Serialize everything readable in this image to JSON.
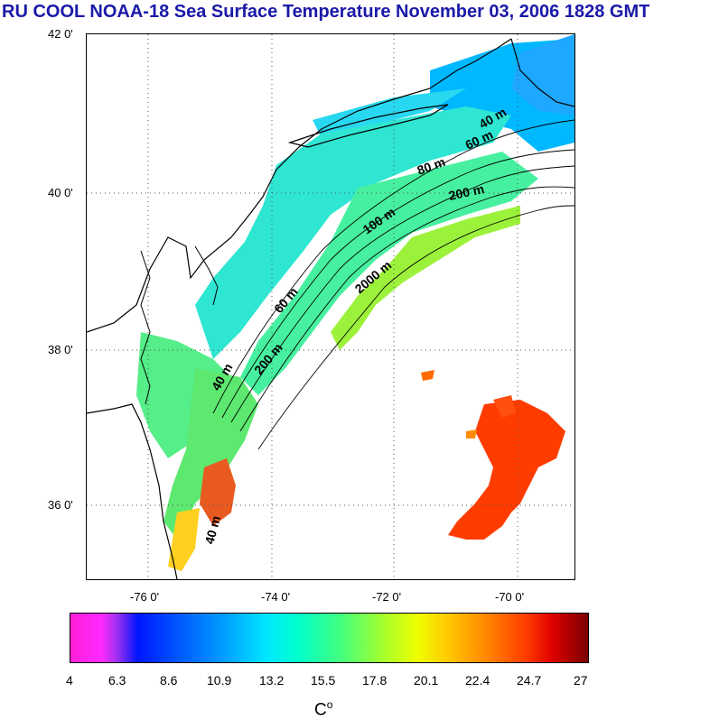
{
  "title": "RU COOL  NOAA-18 Sea Surface Temperature November 03, 2006 1828 GMT",
  "map": {
    "lat_labels": [
      "42 0'",
      "40 0'",
      "38 0'",
      "36 0'"
    ],
    "lon_labels": [
      "-76 0'",
      "-74 0'",
      "-72 0'",
      "-70 0'"
    ],
    "contour_labels": [
      "40 m",
      "60 m",
      "80 m",
      "200 m",
      "100 m",
      "2000 m",
      "60 m",
      "200 m",
      "40 m",
      "40 m"
    ]
  },
  "colorbar": {
    "ticks": [
      "4",
      "6.3",
      "8.6",
      "10.9",
      "13.2",
      "15.5",
      "17.8",
      "20.1",
      "22.4",
      "24.7",
      "27"
    ],
    "unit": "C",
    "unit_superscript": "o"
  }
}
